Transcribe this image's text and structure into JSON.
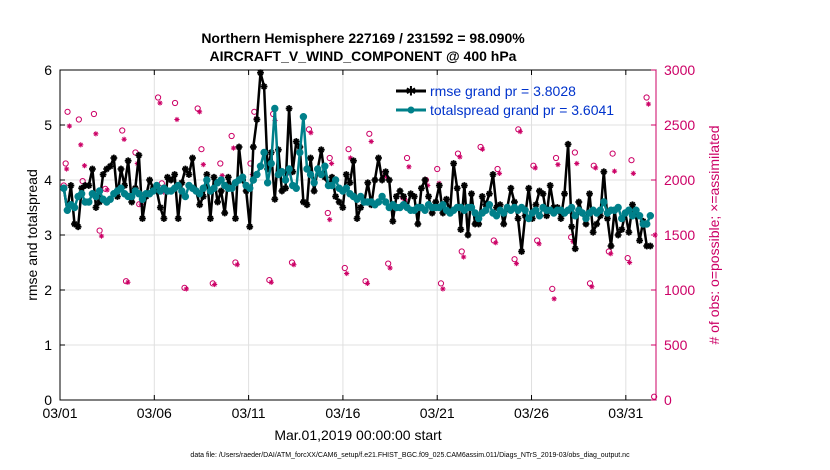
{
  "chart_data": {
    "type": "line",
    "title_line1": "Northern Hemisphere 227169 / 231592 = 98.090%",
    "title_line2": "AIRCRAFT_V_WIND_COMPONENT @ 400 hPa",
    "xlabel": "Mar.01,2019 00:00:00 start",
    "ylabel": "rmse and totalspread",
    "ylabel_right": "# of obs: o=possible; ×=assimilated",
    "xlim": [
      0,
      31.6
    ],
    "ylim": [
      0,
      6
    ],
    "ylim_right": [
      0,
      3000
    ],
    "x_ticks": [
      0,
      5,
      10,
      15,
      20,
      25,
      30
    ],
    "x_tick_labels": [
      "03/01",
      "03/06",
      "03/11",
      "03/16",
      "03/21",
      "03/26",
      "03/31"
    ],
    "y_ticks": [
      0,
      1,
      2,
      3,
      4,
      5,
      6
    ],
    "y_tick_labels": [
      "0",
      "1",
      "2",
      "3",
      "4",
      "5",
      "6"
    ],
    "y_right_ticks": [
      0,
      500,
      1000,
      1500,
      2000,
      2500,
      3000
    ],
    "y_right_tick_labels": [
      "0",
      "500",
      "1000",
      "1500",
      "2000",
      "2500",
      "3000"
    ],
    "footnote": "data file: /Users/raeder/DAI/ATM_forcXX/CAM6_setup/f.e21.FHIST_BGC.f09_025.CAM6assim.011/Diags_NTrS_2019-03/obs_diag_output.nc",
    "colors": {
      "rmse": "#000000",
      "spread": "#00808a",
      "obs": "#cc0066",
      "legend_text": "#0033cc",
      "grid": "#e0e0e0"
    },
    "series": [
      {
        "name": "rmse grand pr = 3.8028",
        "key": "rmse",
        "values": [
          3.85,
          3.45,
          3.9,
          3.2,
          3.15,
          3.85,
          3.9,
          3.9,
          4.2,
          3.5,
          3.6,
          4.1,
          4.2,
          4.25,
          4.4,
          3.7,
          4.2,
          3.9,
          4.35,
          3.6,
          3.85,
          4.45,
          3.3,
          3.7,
          4.0,
          3.85,
          3.8,
          3.5,
          3.3,
          4.05,
          4.0,
          4.1,
          3.3,
          3.95,
          4.2,
          4.1,
          4.4,
          3.8,
          3.55,
          3.7,
          4.1,
          3.3,
          4.05,
          3.6,
          3.8,
          3.4,
          4.05,
          3.85,
          3.3,
          4.6,
          4.0,
          3.8,
          3.15,
          4.6,
          5.1,
          5.95,
          5.7,
          4.2,
          4.5,
          3.65,
          4.55,
          3.8,
          3.85,
          5.3,
          4.15,
          4.7,
          4.6,
          3.6,
          3.55,
          4.4,
          3.8,
          4.2,
          4.55,
          4.05,
          3.9,
          4.05,
          3.7,
          3.6,
          3.5,
          4.1,
          3.95,
          4.35,
          3.3,
          3.5,
          3.6,
          3.95,
          3.55,
          4.0,
          4.4,
          4.0,
          4.15,
          4.0,
          3.25,
          3.7,
          3.8,
          3.7,
          3.5,
          3.75,
          3.7,
          3.2,
          3.85,
          4.0,
          3.7,
          3.4,
          3.6,
          3.9,
          3.4,
          3.65,
          3.4,
          4.3,
          3.85,
          3.1,
          3.9,
          3.0,
          3.75,
          3.2,
          3.2,
          3.7,
          3.55,
          3.75,
          4.1,
          3.5,
          3.55,
          3.2,
          3.5,
          3.85,
          3.6,
          3.3,
          2.7,
          3.35,
          3.85,
          3.3,
          3.55,
          3.8,
          3.75,
          3.35,
          3.9,
          3.5,
          3.5,
          3.3,
          3.75,
          4.65,
          3.15,
          2.75,
          3.6,
          3.4,
          3.2,
          3.75,
          3.05,
          3.2,
          3.35,
          4.15,
          3.3,
          2.8,
          3.45,
          3.0,
          3.1,
          3.4,
          3.05,
          3.55,
          3.35,
          2.9,
          3.25,
          2.8,
          2.8
        ]
      },
      {
        "name": "totalspread grand pr = 3.6041",
        "key": "spread",
        "values": [
          3.85,
          3.45,
          3.55,
          3.5,
          3.7,
          3.75,
          3.6,
          3.6,
          3.75,
          3.7,
          3.8,
          3.65,
          3.6,
          3.65,
          3.75,
          3.8,
          3.85,
          3.75,
          3.7,
          3.7,
          3.8,
          3.75,
          3.65,
          3.75,
          3.75,
          3.8,
          3.9,
          3.8,
          3.85,
          3.8,
          3.8,
          3.85,
          3.9,
          3.8,
          3.7,
          3.9,
          3.85,
          3.8,
          3.75,
          3.85,
          4.0,
          3.8,
          3.85,
          3.95,
          4.0,
          3.9,
          3.85,
          3.85,
          3.95,
          4.0,
          4.05,
          3.9,
          3.85,
          4.0,
          4.1,
          4.25,
          4.5,
          3.95,
          4.3,
          5.3,
          4.1,
          4.15,
          4.0,
          4.2,
          3.9,
          3.85,
          4.5,
          5.15,
          4.2,
          4.1,
          3.95,
          4.2,
          4.1,
          4.25,
          3.9,
          3.9,
          4.0,
          3.85,
          3.8,
          3.85,
          3.75,
          3.7,
          3.65,
          3.7,
          3.6,
          3.6,
          3.6,
          3.55,
          3.6,
          3.7,
          3.6,
          3.5,
          3.55,
          3.5,
          3.5,
          3.55,
          3.5,
          3.45,
          3.45,
          3.5,
          3.5,
          3.45,
          3.55,
          3.5,
          3.5,
          3.5,
          3.55,
          3.45,
          3.4,
          3.45,
          3.5,
          3.5,
          3.45,
          3.5,
          3.5,
          3.4,
          3.3,
          3.4,
          3.45,
          3.55,
          3.4,
          3.35,
          3.45,
          3.4,
          3.5,
          3.45,
          3.5,
          3.45,
          3.5,
          3.45,
          3.3,
          3.4,
          3.45,
          3.35,
          3.5,
          3.45,
          3.45,
          3.4,
          3.45,
          3.45,
          3.4,
          3.45,
          3.5,
          3.35,
          3.45,
          3.4,
          3.3,
          3.4,
          3.45,
          3.4,
          3.45,
          3.6,
          3.4,
          3.45,
          3.45,
          3.5,
          3.3,
          3.4,
          3.45,
          3.35,
          3.45,
          3.35,
          3.2,
          3.2,
          3.35
        ]
      }
    ],
    "obs_possible": [
      {
        "x": 0.2,
        "y": 1950
      },
      {
        "x": 0.3,
        "y": 2150
      },
      {
        "x": 0.4,
        "y": 2620
      },
      {
        "x": 1.0,
        "y": 2550
      },
      {
        "x": 1.2,
        "y": 1990
      },
      {
        "x": 1.8,
        "y": 2600
      },
      {
        "x": 2.1,
        "y": 1540
      },
      {
        "x": 2.4,
        "y": 1920
      },
      {
        "x": 3.3,
        "y": 2450
      },
      {
        "x": 3.5,
        "y": 1080
      },
      {
        "x": 4.0,
        "y": 2250
      },
      {
        "x": 4.2,
        "y": 1780
      },
      {
        "x": 5.2,
        "y": 2750
      },
      {
        "x": 5.4,
        "y": 1970
      },
      {
        "x": 6.1,
        "y": 2700
      },
      {
        "x": 6.6,
        "y": 1020
      },
      {
        "x": 7.3,
        "y": 2650
      },
      {
        "x": 7.5,
        "y": 2280
      },
      {
        "x": 8.1,
        "y": 1060
      },
      {
        "x": 8.5,
        "y": 2150
      },
      {
        "x": 9.1,
        "y": 2400
      },
      {
        "x": 9.3,
        "y": 1250
      },
      {
        "x": 10.1,
        "y": 2150
      },
      {
        "x": 10.3,
        "y": 2620
      },
      {
        "x": 11.1,
        "y": 1090
      },
      {
        "x": 11.3,
        "y": 2600
      },
      {
        "x": 12.1,
        "y": 2100
      },
      {
        "x": 12.3,
        "y": 1250
      },
      {
        "x": 13.2,
        "y": 2460
      },
      {
        "x": 14.2,
        "y": 1700
      },
      {
        "x": 14.3,
        "y": 2200
      },
      {
        "x": 15.1,
        "y": 1200
      },
      {
        "x": 15.3,
        "y": 2280
      },
      {
        "x": 16.2,
        "y": 1080
      },
      {
        "x": 16.4,
        "y": 2420
      },
      {
        "x": 17.2,
        "y": 2060
      },
      {
        "x": 17.4,
        "y": 1240
      },
      {
        "x": 18.2,
        "y": 1840
      },
      {
        "x": 18.4,
        "y": 2200
      },
      {
        "x": 19.4,
        "y": 2000
      },
      {
        "x": 20.0,
        "y": 2100
      },
      {
        "x": 20.2,
        "y": 1060
      },
      {
        "x": 21.1,
        "y": 2240
      },
      {
        "x": 21.3,
        "y": 1350
      },
      {
        "x": 22.3,
        "y": 2300
      },
      {
        "x": 23.0,
        "y": 1450
      },
      {
        "x": 23.2,
        "y": 2100
      },
      {
        "x": 24.1,
        "y": 1280
      },
      {
        "x": 24.3,
        "y": 2460
      },
      {
        "x": 25.1,
        "y": 2130
      },
      {
        "x": 25.3,
        "y": 1450
      },
      {
        "x": 26.1,
        "y": 1010
      },
      {
        "x": 26.3,
        "y": 2200
      },
      {
        "x": 27.1,
        "y": 1480
      },
      {
        "x": 27.3,
        "y": 2250
      },
      {
        "x": 28.1,
        "y": 1060
      },
      {
        "x": 28.3,
        "y": 2130
      },
      {
        "x": 29.1,
        "y": 1350
      },
      {
        "x": 29.3,
        "y": 2240
      },
      {
        "x": 30.1,
        "y": 1290
      },
      {
        "x": 30.3,
        "y": 2180
      },
      {
        "x": 31.1,
        "y": 2750
      },
      {
        "x": 31.5,
        "y": 30
      }
    ],
    "obs_assimilated": [
      {
        "x": 0.2,
        "y": 1930
      },
      {
        "x": 0.35,
        "y": 2100
      },
      {
        "x": 0.5,
        "y": 2490
      },
      {
        "x": 1.1,
        "y": 2320
      },
      {
        "x": 1.3,
        "y": 2130
      },
      {
        "x": 1.9,
        "y": 2420
      },
      {
        "x": 2.2,
        "y": 1490
      },
      {
        "x": 2.5,
        "y": 1910
      },
      {
        "x": 3.4,
        "y": 2370
      },
      {
        "x": 3.6,
        "y": 1070
      },
      {
        "x": 4.1,
        "y": 2150
      },
      {
        "x": 4.3,
        "y": 1780
      },
      {
        "x": 5.3,
        "y": 2700
      },
      {
        "x": 5.5,
        "y": 1890
      },
      {
        "x": 6.2,
        "y": 2550
      },
      {
        "x": 6.7,
        "y": 1010
      },
      {
        "x": 7.4,
        "y": 2620
      },
      {
        "x": 7.6,
        "y": 2140
      },
      {
        "x": 8.2,
        "y": 1050
      },
      {
        "x": 8.6,
        "y": 2040
      },
      {
        "x": 9.2,
        "y": 2290
      },
      {
        "x": 9.4,
        "y": 1230
      },
      {
        "x": 10.2,
        "y": 2050
      },
      {
        "x": 10.4,
        "y": 2560
      },
      {
        "x": 11.2,
        "y": 1070
      },
      {
        "x": 11.4,
        "y": 2540
      },
      {
        "x": 12.2,
        "y": 2060
      },
      {
        "x": 12.4,
        "y": 1230
      },
      {
        "x": 13.3,
        "y": 2430
      },
      {
        "x": 14.3,
        "y": 1640
      },
      {
        "x": 14.4,
        "y": 2150
      },
      {
        "x": 15.2,
        "y": 1150
      },
      {
        "x": 15.4,
        "y": 2200
      },
      {
        "x": 16.3,
        "y": 1060
      },
      {
        "x": 16.5,
        "y": 2350
      },
      {
        "x": 17.3,
        "y": 2030
      },
      {
        "x": 17.5,
        "y": 1200
      },
      {
        "x": 18.3,
        "y": 1820
      },
      {
        "x": 18.5,
        "y": 2120
      },
      {
        "x": 19.5,
        "y": 1950
      },
      {
        "x": 20.1,
        "y": 1970
      },
      {
        "x": 20.3,
        "y": 1010
      },
      {
        "x": 21.2,
        "y": 2210
      },
      {
        "x": 21.4,
        "y": 1300
      },
      {
        "x": 22.4,
        "y": 2280
      },
      {
        "x": 23.1,
        "y": 1430
      },
      {
        "x": 23.3,
        "y": 2060
      },
      {
        "x": 24.2,
        "y": 1240
      },
      {
        "x": 24.4,
        "y": 2440
      },
      {
        "x": 25.2,
        "y": 2110
      },
      {
        "x": 25.4,
        "y": 1420
      },
      {
        "x": 26.2,
        "y": 920
      },
      {
        "x": 26.4,
        "y": 2140
      },
      {
        "x": 27.2,
        "y": 1440
      },
      {
        "x": 27.4,
        "y": 2150
      },
      {
        "x": 28.2,
        "y": 1030
      },
      {
        "x": 28.4,
        "y": 2110
      },
      {
        "x": 29.2,
        "y": 1330
      },
      {
        "x": 29.4,
        "y": 2080
      },
      {
        "x": 30.2,
        "y": 1250
      },
      {
        "x": 30.4,
        "y": 2060
      },
      {
        "x": 31.2,
        "y": 2690
      },
      {
        "x": 31.55,
        "y": 1500
      }
    ]
  }
}
